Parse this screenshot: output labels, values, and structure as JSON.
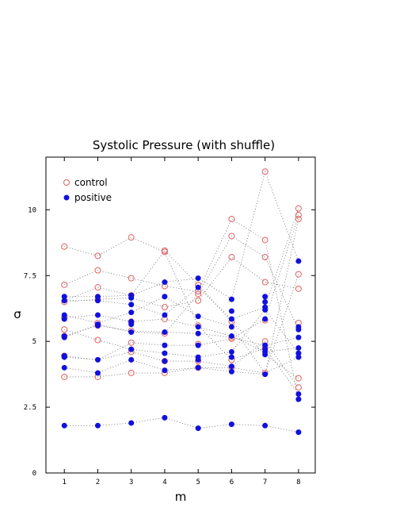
{
  "chart_data": {
    "type": "scatter",
    "title": "Systolic Pressure (with shuffle)",
    "xlabel": "m",
    "ylabel": "σ",
    "xlim": [
      0.45,
      8.5
    ],
    "ylim": [
      0,
      12
    ],
    "x_ticks": [
      "1",
      "2",
      "3",
      "4",
      "5",
      "6",
      "7",
      "8"
    ],
    "y_ticks": [
      "0",
      "2.5",
      "5",
      "7.5",
      "10"
    ],
    "legend_position": "top-left",
    "x": [
      1,
      2,
      3,
      4,
      5,
      6,
      7,
      8
    ],
    "series": [
      {
        "name": "control",
        "marker": "open-circle",
        "color": "#e06060",
        "points": [
          [
            1,
            8.6
          ],
          [
            1,
            7.15
          ],
          [
            1,
            6.5
          ],
          [
            1,
            5.9
          ],
          [
            1,
            5.45
          ],
          [
            1,
            5.2
          ],
          [
            1,
            4.45
          ],
          [
            1,
            3.65
          ],
          [
            2,
            8.25
          ],
          [
            2,
            7.7
          ],
          [
            2,
            7.05
          ],
          [
            2,
            6.6
          ],
          [
            2,
            5.7
          ],
          [
            2,
            5.6
          ],
          [
            2,
            5.05
          ],
          [
            2,
            3.65
          ],
          [
            3,
            8.95
          ],
          [
            3,
            7.4
          ],
          [
            3,
            6.75
          ],
          [
            3,
            5.75
          ],
          [
            3,
            5.4
          ],
          [
            3,
            4.95
          ],
          [
            3,
            4.6
          ],
          [
            3,
            3.8
          ],
          [
            4,
            8.4
          ],
          [
            4,
            8.45
          ],
          [
            4,
            7.1
          ],
          [
            4,
            6.3
          ],
          [
            4,
            5.85
          ],
          [
            4,
            5.3
          ],
          [
            4,
            4.25
          ],
          [
            4,
            3.8
          ],
          [
            5,
            7.15
          ],
          [
            5,
            6.9
          ],
          [
            5,
            6.55
          ],
          [
            5,
            6.8
          ],
          [
            5,
            5.6
          ],
          [
            5,
            4.9
          ],
          [
            5,
            4.25
          ],
          [
            5,
            4.0
          ],
          [
            6,
            9.65
          ],
          [
            6,
            9.0
          ],
          [
            6,
            8.2
          ],
          [
            6,
            5.75
          ],
          [
            6,
            5.15
          ],
          [
            6,
            5.1
          ],
          [
            6,
            4.3
          ],
          [
            6,
            4.0
          ],
          [
            7,
            11.45
          ],
          [
            7,
            8.85
          ],
          [
            7,
            8.2
          ],
          [
            7,
            7.25
          ],
          [
            7,
            5.8
          ],
          [
            7,
            5.0
          ],
          [
            7,
            4.75
          ],
          [
            7,
            3.8
          ],
          [
            8,
            10.05
          ],
          [
            8,
            9.8
          ],
          [
            8,
            9.65
          ],
          [
            8,
            7.55
          ],
          [
            8,
            7.0
          ],
          [
            8,
            5.7
          ],
          [
            8,
            3.6
          ],
          [
            8,
            3.25
          ]
        ]
      },
      {
        "name": "positive",
        "marker": "filled-circle",
        "color": "#1010e0",
        "points": [
          [
            1,
            6.7
          ],
          [
            1,
            6.55
          ],
          [
            1,
            6.0
          ],
          [
            1,
            5.85
          ],
          [
            1,
            5.2
          ],
          [
            1,
            5.15
          ],
          [
            1,
            4.45
          ],
          [
            1,
            4.4
          ],
          [
            1,
            4.0
          ],
          [
            1,
            1.8
          ],
          [
            2,
            6.7
          ],
          [
            2,
            6.55
          ],
          [
            2,
            6.0
          ],
          [
            2,
            5.65
          ],
          [
            2,
            5.6
          ],
          [
            2,
            4.3
          ],
          [
            2,
            3.8
          ],
          [
            2,
            1.8
          ],
          [
            3,
            6.75
          ],
          [
            3,
            6.65
          ],
          [
            3,
            6.4
          ],
          [
            3,
            6.1
          ],
          [
            3,
            5.75
          ],
          [
            3,
            5.65
          ],
          [
            3,
            5.35
          ],
          [
            3,
            4.7
          ],
          [
            3,
            4.3
          ],
          [
            3,
            1.9
          ],
          [
            4,
            7.25
          ],
          [
            4,
            6.7
          ],
          [
            4,
            6.0
          ],
          [
            4,
            5.35
          ],
          [
            4,
            4.85
          ],
          [
            4,
            4.55
          ],
          [
            4,
            4.25
          ],
          [
            4,
            3.9
          ],
          [
            4,
            2.1
          ],
          [
            5,
            7.4
          ],
          [
            5,
            7.05
          ],
          [
            5,
            5.95
          ],
          [
            5,
            5.55
          ],
          [
            5,
            5.3
          ],
          [
            5,
            4.85
          ],
          [
            5,
            4.4
          ],
          [
            5,
            4.3
          ],
          [
            5,
            4.0
          ],
          [
            5,
            1.7
          ],
          [
            6,
            6.6
          ],
          [
            6,
            6.15
          ],
          [
            6,
            5.85
          ],
          [
            6,
            5.55
          ],
          [
            6,
            5.2
          ],
          [
            6,
            4.6
          ],
          [
            6,
            4.4
          ],
          [
            6,
            4.05
          ],
          [
            6,
            3.85
          ],
          [
            6,
            1.85
          ],
          [
            7,
            6.7
          ],
          [
            7,
            6.5
          ],
          [
            7,
            6.3
          ],
          [
            7,
            6.2
          ],
          [
            7,
            5.85
          ],
          [
            7,
            4.85
          ],
          [
            7,
            4.7
          ],
          [
            7,
            4.6
          ],
          [
            7,
            4.5
          ],
          [
            7,
            3.75
          ],
          [
            7,
            1.8
          ],
          [
            8,
            8.05
          ],
          [
            8,
            5.55
          ],
          [
            8,
            5.45
          ],
          [
            8,
            5.15
          ],
          [
            8,
            4.75
          ],
          [
            8,
            4.55
          ],
          [
            8,
            4.4
          ],
          [
            8,
            3.0
          ],
          [
            8,
            2.8
          ],
          [
            8,
            1.55
          ]
        ]
      }
    ],
    "trajectories": [
      [
        1.8,
        1.8,
        1.9,
        2.1,
        1.7,
        1.85,
        1.8,
        1.55
      ],
      [
        3.65,
        3.65,
        3.8,
        3.8,
        4.0,
        4.0,
        3.8,
        7.55
      ],
      [
        4.0,
        3.8,
        4.3,
        3.9,
        4.0,
        3.85,
        3.75,
        9.65
      ],
      [
        8.6,
        8.25,
        8.95,
        8.4,
        5.6,
        4.3,
        4.75,
        3.0
      ],
      [
        7.15,
        7.7,
        7.4,
        7.1,
        6.9,
        9.65,
        8.85,
        2.8
      ],
      [
        4.45,
        4.3,
        4.6,
        4.25,
        4.25,
        4.05,
        5.0,
        3.25
      ],
      [
        5.2,
        5.6,
        5.4,
        5.35,
        5.3,
        5.15,
        4.85,
        5.15
      ],
      [
        6.55,
        6.55,
        6.4,
        6.0,
        7.05,
        5.85,
        6.3,
        10.05
      ],
      [
        6.7,
        6.7,
        6.75,
        7.25,
        7.4,
        6.6,
        11.45,
        8.05
      ],
      [
        5.9,
        6.0,
        5.75,
        5.85,
        5.55,
        5.2,
        4.6,
        4.75
      ],
      [
        5.45,
        5.05,
        4.7,
        4.55,
        4.4,
        4.6,
        6.2,
        4.55
      ],
      [
        6.5,
        6.6,
        6.65,
        6.3,
        6.55,
        8.2,
        7.25,
        7.0
      ],
      [
        4.4,
        4.3,
        4.95,
        4.85,
        4.85,
        5.1,
        5.85,
        9.8
      ],
      [
        6.0,
        5.7,
        6.1,
        6.7,
        5.95,
        5.55,
        3.8,
        4.4
      ],
      [
        5.15,
        5.65,
        5.35,
        5.3,
        6.8,
        9.0,
        8.2,
        5.45
      ],
      [
        6.55,
        7.05,
        6.75,
        8.45,
        7.15,
        5.75,
        4.5,
        3.6
      ]
    ]
  }
}
